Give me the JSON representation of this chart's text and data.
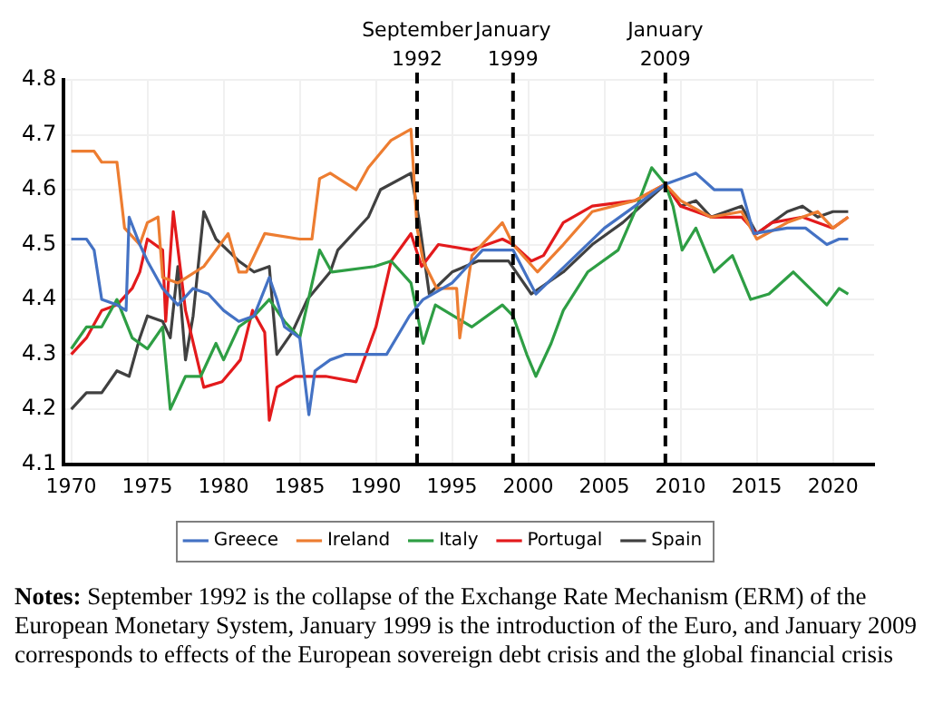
{
  "chart_data": {
    "type": "line",
    "xlim": [
      1969.5,
      2022.7
    ],
    "xticks": [
      1970,
      1975,
      1980,
      1985,
      1990,
      1995,
      2000,
      2005,
      2010,
      2015,
      2020
    ],
    "ylim": [
      4.1,
      4.8
    ],
    "yticks": [
      4.1,
      4.2,
      4.3,
      4.4,
      4.5,
      4.6,
      4.7,
      4.8
    ],
    "grid": true,
    "legend": "bottom",
    "marker": "none",
    "line_style": "solid",
    "ref_lines": [
      {
        "axis": "x",
        "value": 1992.7,
        "label": "September 1992",
        "color": "#000000",
        "line_style": "dashed"
      },
      {
        "axis": "x",
        "value": 1999.0,
        "label": "January 1999",
        "color": "#000000",
        "line_style": "dashed"
      },
      {
        "axis": "x",
        "value": 2009.0,
        "label": "January 2009",
        "color": "#000000",
        "line_style": "dashed"
      }
    ],
    "annotations": [
      "Notes: September 1992 is the collapse of the Exchange Rate Mechanism (ERM) of the European Monetary System, January 1999 is the introduction of the Euro, and January 2009 corresponds to effects of the European sovereign debt crisis and the global financial crisis"
    ],
    "series": [
      {
        "name": "Greece",
        "color": "#4472c4",
        "x": [
          1970,
          1971,
          1971.5,
          1972,
          1973,
          1973.6,
          1973.8,
          1974.5,
          1975,
          1976,
          1977,
          1978,
          1979,
          1980,
          1981,
          1982,
          1983,
          1983.5,
          1984,
          1985,
          1985.6,
          1986,
          1987,
          1988,
          1990.7,
          1992.2,
          1993.1,
          1995,
          1997,
          1999,
          2000.5,
          2002,
          2005,
          2008,
          2009,
          2011,
          2012.2,
          2014,
          2014.8,
          2017,
          2018.2,
          2019.6,
          2020.4,
          2021
        ],
        "values": [
          4.51,
          4.51,
          4.49,
          4.4,
          4.39,
          4.38,
          4.55,
          4.5,
          4.47,
          4.42,
          4.39,
          4.42,
          4.41,
          4.38,
          4.36,
          4.37,
          4.44,
          4.4,
          4.35,
          4.33,
          4.19,
          4.27,
          4.29,
          4.3,
          4.3,
          4.37,
          4.4,
          4.43,
          4.49,
          4.49,
          4.41,
          4.45,
          4.53,
          4.59,
          4.61,
          4.63,
          4.6,
          4.6,
          4.52,
          4.53,
          4.53,
          4.5,
          4.51,
          4.51
        ]
      },
      {
        "name": "Ireland",
        "color": "#ed7d31",
        "x": [
          1970,
          1971.5,
          1972,
          1973,
          1973.5,
          1974.5,
          1975,
          1975.7,
          1976,
          1977,
          1978.7,
          1980.3,
          1981,
          1981.5,
          1982.7,
          1985,
          1985.8,
          1986.3,
          1987,
          1988.7,
          1989.5,
          1991,
          1992.3,
          1992.7,
          1993.1,
          1994,
          1995.3,
          1995.5,
          1996.3,
          1998.3,
          1999,
          2000.6,
          2002.3,
          2004.2,
          2007,
          2009,
          2010,
          2012,
          2014,
          2015,
          2017,
          2019,
          2020,
          2021
        ],
        "values": [
          4.67,
          4.67,
          4.65,
          4.65,
          4.53,
          4.5,
          4.54,
          4.55,
          4.44,
          4.43,
          4.46,
          4.52,
          4.45,
          4.45,
          4.52,
          4.51,
          4.51,
          4.62,
          4.63,
          4.6,
          4.64,
          4.69,
          4.71,
          4.53,
          4.47,
          4.42,
          4.42,
          4.33,
          4.48,
          4.54,
          4.5,
          4.45,
          4.5,
          4.56,
          4.58,
          4.61,
          4.58,
          4.55,
          4.56,
          4.51,
          4.54,
          4.56,
          4.53,
          4.55
        ]
      },
      {
        "name": "Italy",
        "color": "#2e9e44",
        "x": [
          1970,
          1971,
          1972,
          1973,
          1974,
          1975,
          1976,
          1976.5,
          1977.5,
          1978.5,
          1979.5,
          1980,
          1981,
          1982,
          1983,
          1984,
          1985,
          1986.3,
          1987.1,
          1989.9,
          1991,
          1992.3,
          1993.1,
          1993.9,
          1996.3,
          1998.3,
          1999,
          1999.9,
          2000.5,
          2001.5,
          2002.3,
          2003.9,
          2005.9,
          2007,
          2008.1,
          2009,
          2009.5,
          2010.1,
          2011,
          2012.2,
          2013.4,
          2014.6,
          2015.8,
          2017.4,
          2019.6,
          2020.4,
          2021
        ],
        "values": [
          4.31,
          4.35,
          4.35,
          4.4,
          4.33,
          4.31,
          4.35,
          4.2,
          4.26,
          4.26,
          4.32,
          4.29,
          4.35,
          4.37,
          4.4,
          4.36,
          4.33,
          4.49,
          4.45,
          4.46,
          4.47,
          4.43,
          4.32,
          4.39,
          4.35,
          4.39,
          4.37,
          4.3,
          4.26,
          4.32,
          4.38,
          4.45,
          4.49,
          4.56,
          4.64,
          4.61,
          4.57,
          4.49,
          4.53,
          4.45,
          4.48,
          4.4,
          4.41,
          4.45,
          4.39,
          4.42,
          4.41
        ]
      },
      {
        "name": "Portugal",
        "color": "#e31a1c",
        "x": [
          1970,
          1971,
          1972,
          1973,
          1974,
          1974.5,
          1975,
          1976,
          1976.2,
          1976.7,
          1977.5,
          1978.7,
          1979.9,
          1981.1,
          1981.9,
          1982.7,
          1983,
          1983.5,
          1984.7,
          1986.7,
          1988.7,
          1990,
          1991,
          1992.3,
          1993,
          1994.1,
          1996.3,
          1998.3,
          1999,
          2000.2,
          2001,
          2002.3,
          2004.2,
          2007,
          2009,
          2010,
          2012,
          2014,
          2015,
          2016,
          2018,
          2020,
          2021
        ],
        "values": [
          4.3,
          4.33,
          4.38,
          4.39,
          4.42,
          4.45,
          4.51,
          4.49,
          4.36,
          4.56,
          4.38,
          4.24,
          4.25,
          4.29,
          4.38,
          4.34,
          4.18,
          4.24,
          4.26,
          4.26,
          4.25,
          4.35,
          4.47,
          4.52,
          4.46,
          4.5,
          4.49,
          4.51,
          4.5,
          4.47,
          4.48,
          4.54,
          4.57,
          4.58,
          4.61,
          4.57,
          4.55,
          4.55,
          4.52,
          4.54,
          4.55,
          4.53,
          4.55
        ]
      },
      {
        "name": "Spain",
        "color": "#404040",
        "x": [
          1970,
          1971,
          1972,
          1973,
          1973.8,
          1974.5,
          1975,
          1976,
          1976.5,
          1977,
          1977.5,
          1978,
          1978.7,
          1979.5,
          1981,
          1982,
          1983,
          1983.5,
          1984.5,
          1985.5,
          1987,
          1987.5,
          1989.5,
          1990.3,
          1992.3,
          1992.8,
          1993.5,
          1995,
          1996.7,
          1998.7,
          2000.2,
          2002.3,
          2004.2,
          2006.2,
          2009,
          2010,
          2011,
          2012,
          2014,
          2015,
          2017,
          2018,
          2019,
          2020,
          2021
        ],
        "values": [
          4.2,
          4.23,
          4.23,
          4.27,
          4.26,
          4.33,
          4.37,
          4.36,
          4.33,
          4.46,
          4.29,
          4.37,
          4.56,
          4.51,
          4.47,
          4.45,
          4.46,
          4.3,
          4.34,
          4.4,
          4.45,
          4.49,
          4.55,
          4.6,
          4.63,
          4.55,
          4.41,
          4.45,
          4.47,
          4.47,
          4.41,
          4.45,
          4.5,
          4.54,
          4.61,
          4.57,
          4.58,
          4.55,
          4.57,
          4.52,
          4.56,
          4.57,
          4.55,
          4.56,
          4.56
        ]
      }
    ]
  }
}
